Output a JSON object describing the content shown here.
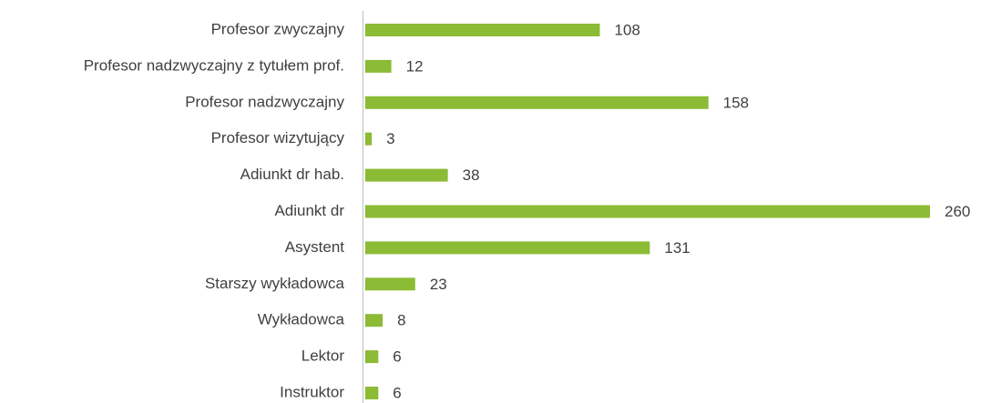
{
  "chart_data": {
    "type": "bar",
    "orientation": "horizontal",
    "categories": [
      "Profesor zwyczajny",
      "Profesor nadzwyczajny z tytułem prof.",
      "Profesor nadzwyczajny",
      "Profesor wizytujący",
      "Adiunkt dr hab.",
      "Adiunkt dr",
      "Asystent",
      "Starszy wykładowca",
      "Wykładowca",
      "Lektor",
      "Instruktor"
    ],
    "values": [
      108,
      12,
      158,
      3,
      38,
      260,
      131,
      23,
      8,
      6,
      6
    ],
    "color": "#8cbb35",
    "xlim": [
      0,
      260
    ]
  }
}
